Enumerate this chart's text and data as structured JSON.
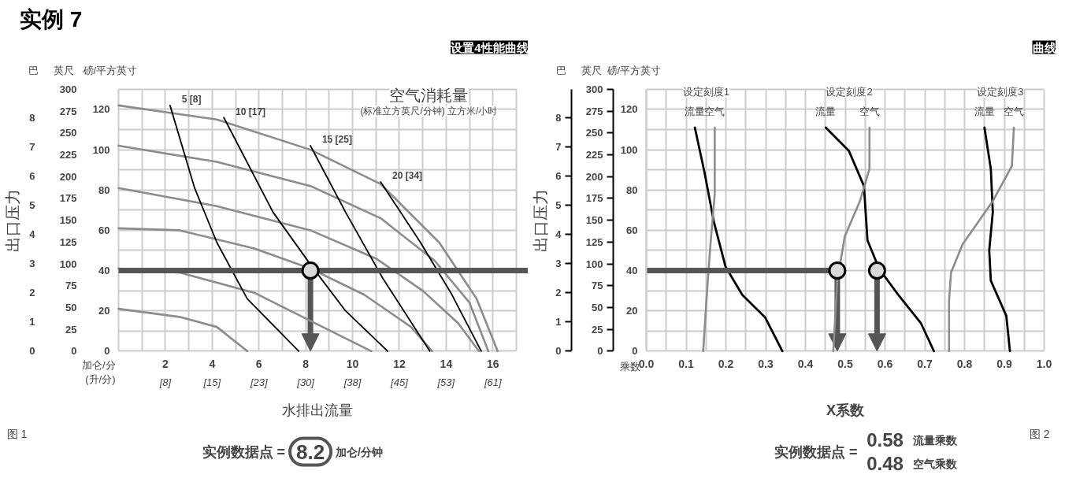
{
  "chart_data": [
    {
      "type": "line",
      "title": "设置4性能曲线",
      "xlabel": "水排出流量",
      "ylabel": "磅/平方英寸",
      "y2label": "英尺",
      "y3label": "巴",
      "grid": true,
      "ref_lines": [
        {
          "axis": "y",
          "value": 40,
          "color": "#555555"
        }
      ],
      "xlim": [
        0,
        17
      ],
      "xticks": [
        {
          "value": 0,
          "label": null
        },
        {
          "value": 1,
          "label": null
        },
        2,
        {
          "value": 3,
          "label": null
        },
        4,
        {
          "value": 5,
          "label": null
        },
        6,
        {
          "value": 7,
          "label": null
        },
        8,
        {
          "value": 9,
          "label": null
        },
        10,
        {
          "value": 11,
          "label": null
        },
        12,
        {
          "value": 13,
          "label": null
        },
        14,
        {
          "value": 15,
          "label": null
        },
        16,
        {
          "value": 17,
          "label": null
        }
      ],
      "x2lim": [
        0,
        64.35
      ],
      "x2ticks": [
        {
          "value": 7.57,
          "label": "[8]"
        },
        {
          "value": 15.14,
          "label": "[15]"
        },
        {
          "value": 22.71,
          "label": "[23]"
        },
        {
          "value": 30.28,
          "label": "[30]"
        },
        {
          "value": 37.85,
          "label": "[38]"
        },
        {
          "value": 45.42,
          "label": "[45]"
        },
        {
          "value": 52.99,
          "label": "[53]"
        },
        {
          "value": 60.56,
          "label": "[61]"
        }
      ],
      "ylim": [
        0,
        130
      ],
      "yticks": [
        0,
        {
          "value": 10,
          "label": null
        },
        20,
        {
          "value": 30,
          "label": null
        },
        40,
        {
          "value": 50,
          "label": null
        },
        60,
        {
          "value": 70,
          "label": null
        },
        80,
        {
          "value": 90,
          "label": null
        },
        100,
        {
          "value": 110,
          "label": null
        },
        120,
        {
          "value": 130,
          "label": null
        }
      ],
      "y2lim": [
        0,
        300
      ],
      "y2ticks": [
        0,
        25,
        50,
        75,
        100,
        125,
        150,
        175,
        200,
        225,
        250,
        275,
        300
      ],
      "y3lim": [
        0,
        8.96
      ],
      "y3ticks": [
        0,
        1,
        2,
        3,
        4,
        5,
        6,
        7,
        8
      ],
      "annotations": [
        "实例 7",
        "空气消耗量",
        "(标准立方英尺/分钟) 立方米/小时",
        "加仑/分\n(升/分)",
        "出口压力",
        "图 1",
        "实例数据点 =",
        "8.2",
        "加仑/分钟"
      ],
      "series": [
        {
          "color": "#8c8c8c",
          "x": [
            0,
            2.6,
            4.2,
            5.5
          ],
          "values": [
            21,
            17,
            12,
            0
          ]
        },
        {
          "color": "#8c8c8c",
          "x": [
            0,
            2.6,
            5.8,
            8.2,
            10.8
          ],
          "values": [
            41,
            39,
            29,
            15,
            0
          ]
        },
        {
          "color": "#8c8c8c",
          "x": [
            0,
            2.6,
            5.8,
            8.2,
            10.5,
            12.5,
            13.4
          ],
          "values": [
            61,
            60,
            51,
            41,
            28,
            12,
            0
          ]
        },
        {
          "color": "#8c8c8c",
          "x": [
            0,
            4.2,
            8.2,
            11,
            13,
            14.5,
            15.4
          ],
          "values": [
            81,
            72,
            60,
            46,
            30,
            14,
            0
          ]
        },
        {
          "color": "#8c8c8c",
          "x": [
            0,
            4.2,
            8.2,
            11.2,
            13.5,
            15,
            15.8
          ],
          "values": [
            102,
            94,
            82,
            66,
            45,
            24,
            0
          ]
        },
        {
          "color": "#8c8c8c",
          "x": [
            0,
            4.2,
            8.2,
            11.2,
            13.7,
            15.3,
            16.2
          ],
          "values": [
            122,
            115,
            100,
            83,
            54,
            26,
            0
          ]
        },
        {
          "name": "5 [8]",
          "color": "#000000",
          "x": [
            2.2,
            3.25,
            4.2,
            5.5,
            7.7
          ],
          "values": [
            122,
            81,
            54,
            26,
            0
          ]
        },
        {
          "name": "10 [17]",
          "color": "#000000",
          "x": [
            4.5,
            6.6,
            8.2,
            9.7,
            11.5
          ],
          "values": [
            116,
            69,
            43,
            20,
            0
          ]
        },
        {
          "name": "15 [25]",
          "color": "#000000",
          "x": [
            8.2,
            9.7,
            11.3,
            13.3
          ],
          "values": [
            102,
            69,
            36,
            0
          ]
        },
        {
          "name": "20 [34]",
          "color": "#000000",
          "x": [
            11.2,
            12.9,
            14.2,
            15.5
          ],
          "values": [
            84,
            54,
            29,
            0
          ]
        },
        {
          "type": "scatter",
          "color": "#d9d9d9",
          "x": [
            8.2
          ],
          "values": [
            40
          ]
        }
      ]
    },
    {
      "type": "line",
      "title": "曲线",
      "xlabel": "X系数",
      "ylabel": "磅/平方英寸",
      "y2label": "英尺",
      "y3label": "巴",
      "grid": true,
      "ref_lines": [
        {
          "axis": "y",
          "value": 40,
          "color": "#555555"
        }
      ],
      "xlim": [
        0,
        1
      ],
      "xticks": [
        {
          "value": 0,
          "label": "0.0"
        },
        {
          "value": 0.05,
          "label": null
        },
        0.1,
        {
          "value": 0.15,
          "label": null
        },
        0.2,
        {
          "value": 0.25,
          "label": null
        },
        0.3,
        {
          "value": 0.35,
          "label": null
        },
        0.4,
        {
          "value": 0.45,
          "label": null
        },
        0.5,
        {
          "value": 0.55,
          "label": null
        },
        0.6,
        {
          "value": 0.65,
          "label": null
        },
        0.7,
        {
          "value": 0.75,
          "label": null
        },
        0.8,
        {
          "value": 0.85,
          "label": null
        },
        0.9,
        {
          "value": 0.95,
          "label": null
        },
        {
          "value": 1,
          "label": "1.0"
        }
      ],
      "ylim": [
        0,
        130
      ],
      "yticks": [
        0,
        {
          "value": 10,
          "label": null
        },
        20,
        {
          "value": 30,
          "label": null
        },
        40,
        {
          "value": 50,
          "label": null
        },
        60,
        {
          "value": 70,
          "label": null
        },
        80,
        {
          "value": 90,
          "label": null
        },
        100,
        {
          "value": 110,
          "label": null
        },
        120,
        {
          "value": 130,
          "label": null
        }
      ],
      "y2lim": [
        0,
        300
      ],
      "y2ticks": [
        0,
        25,
        50,
        75,
        100,
        125,
        150,
        175,
        200,
        225,
        250,
        275,
        300
      ],
      "y3lim": [
        0,
        8.96
      ],
      "y3ticks": [
        0,
        1,
        2,
        3,
        4,
        5,
        6,
        7,
        8
      ],
      "annotations": [
        "设定刻度1",
        "设定刻度2",
        "设定刻度3",
        "乘数",
        "出口压力",
        "图 2",
        "实例数据点 =",
        "0.58",
        "流量乘数",
        "0.48",
        "空气乘数"
      ],
      "series": [
        {
          "name": "流量",
          "color": "#000000",
          "x": [
            0.122,
            0.146,
            0.17,
            0.199,
            0.241,
            0.299,
            0.342
          ],
          "values": [
            111,
            89,
            64,
            42,
            28,
            16.6,
            0
          ]
        },
        {
          "name": "空气",
          "color": "#8c8c8c",
          "x": [
            0.172,
            0.172,
            0.16,
            0.151,
            0.143
          ],
          "values": [
            111,
            78,
            50,
            25,
            0
          ]
        },
        {
          "name": "流量",
          "color": "#000000",
          "x": [
            0.451,
            0.509,
            0.547,
            0.556,
            0.585,
            0.633,
            0.69,
            0.723
          ],
          "values": [
            111,
            99.5,
            82,
            55,
            41,
            28,
            14,
            0
          ]
        },
        {
          "name": "空气",
          "color": "#8c8c8c",
          "x": [
            0.561,
            0.561,
            0.537,
            0.499,
            0.48,
            0.47
          ],
          "values": [
            111,
            90.5,
            74.5,
            57,
            35,
            0
          ]
        },
        {
          "name": "流量",
          "color": "#000000",
          "x": [
            0.85,
            0.866,
            0.871,
            0.862,
            0.866,
            0.905,
            0.914
          ],
          "values": [
            111,
            90.5,
            69,
            50,
            35,
            17.5,
            0
          ]
        },
        {
          "name": "空气",
          "color": "#8c8c8c",
          "x": [
            0.924,
            0.919,
            0.871,
            0.795,
            0.766,
            0.761,
            0.761
          ],
          "values": [
            111,
            92,
            74.5,
            53,
            39,
            25,
            0
          ]
        },
        {
          "type": "scatter",
          "color": "#d9d9d9",
          "x": [
            0.48,
            0.58
          ],
          "values": [
            40,
            40
          ]
        }
      ]
    }
  ]
}
